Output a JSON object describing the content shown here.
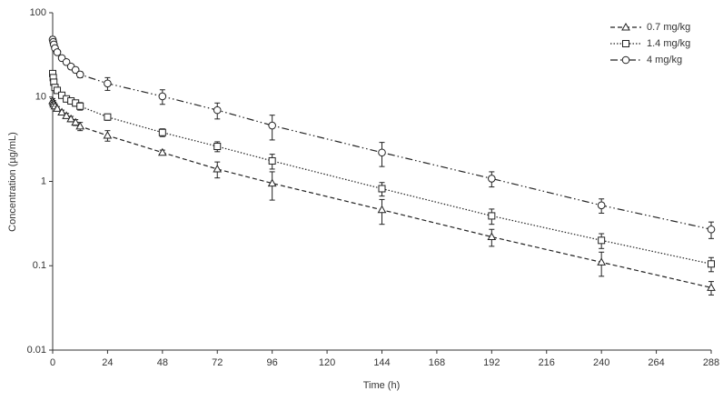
{
  "chart_data": {
    "type": "line",
    "x_label": "Time (h)",
    "y_label": "Concentration (µg/mL)",
    "x": [
      0,
      0.25,
      0.5,
      1,
      2,
      4,
      6,
      8,
      10,
      12,
      24,
      48,
      72,
      96,
      144,
      192,
      240,
      288
    ],
    "series": [
      {
        "name": "0.7 mg/kg",
        "color": "#222222",
        "line_style": "dashed",
        "marker": "triangle",
        "values": [
          9,
          8.6,
          8.2,
          7.8,
          7.3,
          6.6,
          6.0,
          5.5,
          5.0,
          4.5,
          3.5,
          2.2,
          1.4,
          0.95,
          0.46,
          0.22,
          0.11,
          0.055
        ],
        "errors": [
          0.6,
          0.5,
          0.5,
          0.5,
          0.4,
          0.4,
          0.4,
          0.4,
          0.4,
          0.5,
          0.5,
          0.15,
          0.3,
          0.35,
          0.15,
          0.05,
          0.035,
          0.01
        ]
      },
      {
        "name": "1.4 mg/kg",
        "color": "#222222",
        "line_style": "dotted",
        "marker": "square",
        "values": [
          19,
          17,
          15,
          13,
          12,
          10.5,
          9.5,
          9,
          8.5,
          7.8,
          5.8,
          3.8,
          2.6,
          1.75,
          0.82,
          0.39,
          0.2,
          0.105
        ],
        "errors": [
          1.5,
          1.2,
          1.0,
          0.9,
          0.8,
          0.7,
          0.7,
          0.7,
          0.7,
          0.8,
          0.5,
          0.4,
          0.35,
          0.35,
          0.15,
          0.08,
          0.04,
          0.02
        ]
      },
      {
        "name": "4 mg/kg",
        "color": "#222222",
        "line_style": "dashdotdot",
        "marker": "circle",
        "values": [
          48,
          45,
          42,
          38,
          34,
          29,
          26,
          23,
          21,
          18.5,
          14.5,
          10.2,
          7,
          4.6,
          2.2,
          1.08,
          0.52,
          0.27
        ],
        "errors": [
          4,
          3.5,
          3,
          2.5,
          2,
          2,
          1.8,
          1.6,
          1.5,
          1.5,
          2.5,
          2,
          1.5,
          1.5,
          0.7,
          0.22,
          0.1,
          0.06
        ]
      }
    ],
    "xlim": [
      0,
      288
    ],
    "xticks": [
      0,
      24,
      48,
      72,
      96,
      120,
      144,
      168,
      192,
      216,
      240,
      264,
      288
    ],
    "ylim": [
      0.01,
      100
    ],
    "yticks": [
      0.01,
      0.1,
      1,
      10,
      100
    ],
    "y_scale": "log",
    "grid": false,
    "legend": "upper right"
  }
}
